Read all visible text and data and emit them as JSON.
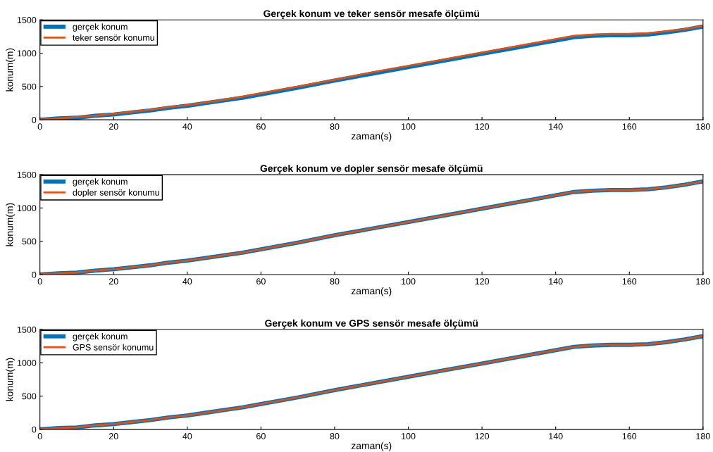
{
  "chart_data": [
    {
      "type": "line",
      "title": "Gerçek konum ve teker sensör mesafe ölçümü",
      "xlabel": "zaman(s)",
      "ylabel": "konum(m)",
      "x": [
        0,
        5,
        10,
        15,
        20,
        25,
        30,
        35,
        40,
        45,
        50,
        55,
        60,
        70,
        80,
        90,
        100,
        110,
        120,
        130,
        140,
        145,
        150,
        155,
        160,
        165,
        170,
        175,
        180
      ],
      "series": [
        {
          "name": "gerçek konum",
          "color": "#0072bd",
          "values": [
            0,
            20,
            30,
            60,
            80,
            110,
            140,
            180,
            210,
            250,
            290,
            330,
            380,
            480,
            590,
            690,
            790,
            890,
            990,
            1090,
            1190,
            1240,
            1260,
            1270,
            1270,
            1280,
            1310,
            1350,
            1400
          ]
        },
        {
          "name": "teker sensör konumu",
          "color": "#d95319",
          "values": [
            0,
            20,
            40,
            60,
            90,
            120,
            150,
            190,
            220,
            260,
            300,
            350,
            400,
            500,
            600,
            710,
            810,
            910,
            1010,
            1110,
            1210,
            1260,
            1280,
            1290,
            1290,
            1300,
            1330,
            1360,
            1410
          ]
        }
      ],
      "xlim": [
        0,
        180
      ],
      "xticks": [
        0,
        20,
        40,
        60,
        80,
        100,
        120,
        140,
        160,
        180
      ],
      "ylim": [
        0,
        1500
      ],
      "yticks": [
        0,
        500,
        1000,
        1500
      ],
      "legend": "top left",
      "grid": false
    },
    {
      "type": "line",
      "title": "Gerçek konum ve dopler sensör mesafe ölçümü",
      "xlabel": "zaman(s)",
      "ylabel": "konum(m)",
      "x": [
        0,
        5,
        10,
        15,
        20,
        25,
        30,
        35,
        40,
        45,
        50,
        55,
        60,
        70,
        80,
        90,
        100,
        110,
        120,
        130,
        140,
        145,
        150,
        155,
        160,
        165,
        170,
        175,
        180
      ],
      "series": [
        {
          "name": "gerçek konum",
          "color": "#0072bd",
          "values": [
            0,
            20,
            30,
            60,
            80,
            110,
            140,
            180,
            210,
            250,
            290,
            330,
            380,
            480,
            590,
            690,
            790,
            890,
            990,
            1090,
            1190,
            1240,
            1260,
            1270,
            1270,
            1280,
            1310,
            1350,
            1400
          ]
        },
        {
          "name": "dopler sensör konumu",
          "color": "#d95319",
          "values": [
            0,
            20,
            30,
            60,
            80,
            110,
            140,
            180,
            210,
            250,
            290,
            330,
            380,
            480,
            590,
            690,
            790,
            890,
            990,
            1090,
            1190,
            1240,
            1260,
            1270,
            1270,
            1280,
            1310,
            1350,
            1400
          ]
        }
      ],
      "xlim": [
        0,
        180
      ],
      "xticks": [
        0,
        20,
        40,
        60,
        80,
        100,
        120,
        140,
        160,
        180
      ],
      "ylim": [
        0,
        1500
      ],
      "yticks": [
        0,
        500,
        1000,
        1500
      ],
      "legend": "top left",
      "grid": false
    },
    {
      "type": "line",
      "title": "Gerçek konum ve GPS sensör mesafe ölçümü",
      "xlabel": "zaman(s)",
      "ylabel": "konum(m)",
      "x": [
        0,
        5,
        10,
        15,
        20,
        25,
        30,
        35,
        40,
        45,
        50,
        55,
        60,
        70,
        80,
        90,
        100,
        110,
        120,
        130,
        140,
        145,
        150,
        155,
        160,
        165,
        170,
        175,
        180
      ],
      "series": [
        {
          "name": "gerçek konum",
          "color": "#0072bd",
          "values": [
            0,
            20,
            30,
            60,
            80,
            110,
            140,
            180,
            210,
            250,
            290,
            330,
            380,
            480,
            590,
            690,
            790,
            890,
            990,
            1090,
            1190,
            1240,
            1260,
            1270,
            1270,
            1280,
            1310,
            1350,
            1400
          ]
        },
        {
          "name": "GPS sensör konumu",
          "color": "#d95319",
          "values": [
            0,
            20,
            30,
            60,
            80,
            110,
            140,
            180,
            210,
            250,
            290,
            330,
            380,
            480,
            590,
            690,
            790,
            890,
            990,
            1090,
            1190,
            1240,
            1260,
            1270,
            1270,
            1280,
            1310,
            1350,
            1400
          ]
        }
      ],
      "xlim": [
        0,
        180
      ],
      "xticks": [
        0,
        20,
        40,
        60,
        80,
        100,
        120,
        140,
        160,
        180
      ],
      "ylim": [
        0,
        1500
      ],
      "yticks": [
        0,
        500,
        1000,
        1500
      ],
      "legend": "top left",
      "grid": false
    }
  ]
}
